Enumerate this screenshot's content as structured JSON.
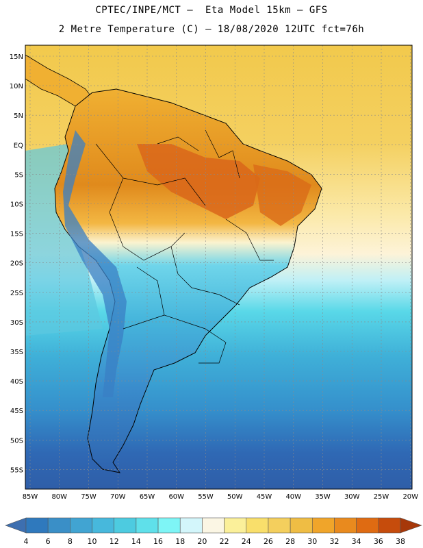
{
  "title_line1": "CPTEC/INPE/MCT –  Eta Model 15km – GFS",
  "title_line2": "2 Metre Temperature (C) – 18/08/2020 12UTC fct=76h",
  "lat_ticks": [
    "15N",
    "10N",
    "5N",
    "EQ",
    "5S",
    "10S",
    "15S",
    "20S",
    "25S",
    "30S",
    "35S",
    "40S",
    "45S",
    "50S",
    "55S"
  ],
  "lon_ticks": [
    "85W",
    "80W",
    "75W",
    "70W",
    "65W",
    "60W",
    "55W",
    "50W",
    "45W",
    "40W",
    "35W",
    "30W",
    "25W",
    "20W"
  ],
  "colorbar": {
    "labels": [
      "4",
      "6",
      "8",
      "10",
      "12",
      "14",
      "16",
      "18",
      "20",
      "22",
      "24",
      "26",
      "28",
      "30",
      "32",
      "34",
      "36",
      "38"
    ],
    "colors": [
      "#3d6fb0",
      "#2f79bd",
      "#3a8fc7",
      "#41a4d2",
      "#47b8dc",
      "#4dcbe0",
      "#5fe0ea",
      "#7ef5f6",
      "#d3f6fb",
      "#fbf6e4",
      "#fbf09a",
      "#f9df6b",
      "#f4cf5d",
      "#efbd44",
      "#f0a52a",
      "#e98a1e",
      "#df6b12",
      "#c64c0c",
      "#a6380a"
    ]
  },
  "colors": {
    "ocean_south": "#2f5ea8",
    "ocean_tropical": "#f2c94c",
    "land_border": "#000000"
  }
}
